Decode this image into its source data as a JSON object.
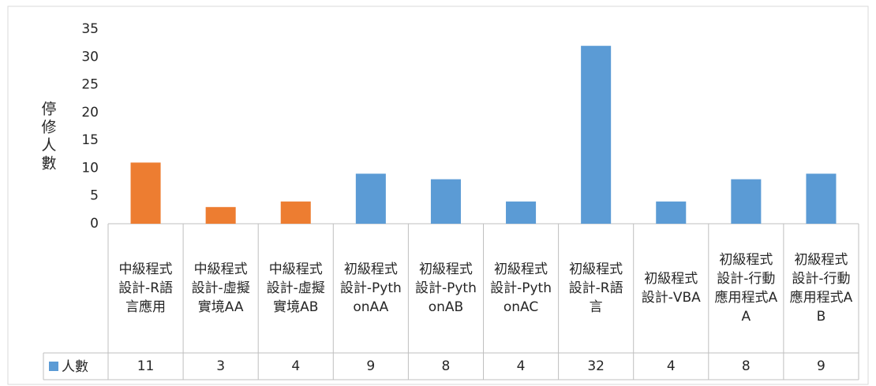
{
  "chart_data": {
    "type": "bar",
    "y_axis_label": "停修人數",
    "categories": [
      "中級程式設計-R語言應用",
      "中級程式設計-虛擬實境AA",
      "中級程式設計-虛擬實境AB",
      "初級程式設計-PythonAA",
      "初級程式設計-PythonAB",
      "初級程式設計-PythonAC",
      "初級程式設計-R語言",
      "初級程式設計-VBA",
      "初級程式設計-行動應用程式AA",
      "初級程式設計-行動應用程式AB"
    ],
    "series": [
      {
        "name": "人數",
        "color": "#5b9bd5",
        "colors": [
          "#ed7d31",
          "#ed7d31",
          "#ed7d31",
          "#5b9bd5",
          "#5b9bd5",
          "#5b9bd5",
          "#5b9bd5",
          "#5b9bd5",
          "#5b9bd5",
          "#5b9bd5"
        ],
        "values": [
          11,
          3,
          4,
          9,
          8,
          4,
          32,
          4,
          8,
          9
        ]
      }
    ],
    "ylim": [
      0,
      35
    ],
    "yticks": [
      0,
      5,
      10,
      15,
      20,
      25,
      30,
      35
    ],
    "grid": false,
    "data_table": true
  }
}
